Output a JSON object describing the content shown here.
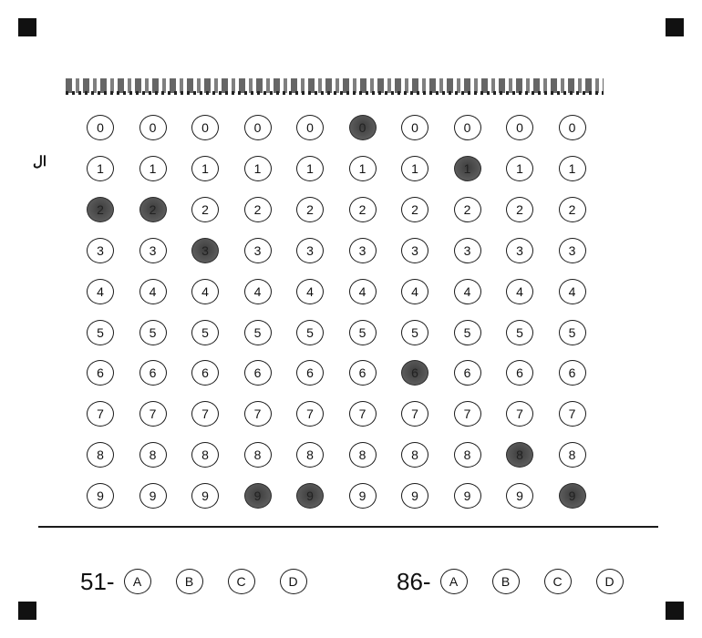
{
  "answer_sheet": {
    "stray_mark": "ال",
    "id_grid": {
      "digits": [
        "0",
        "1",
        "2",
        "3",
        "4",
        "5",
        "6",
        "7",
        "8",
        "9"
      ],
      "marked_digit_per_column": [
        2,
        2,
        3,
        9,
        9,
        0,
        6,
        1,
        8,
        9
      ]
    },
    "questions": [
      {
        "number": "51-",
        "options": [
          "A",
          "B",
          "C",
          "D"
        ]
      },
      {
        "number": "86-",
        "options": [
          "A",
          "B",
          "C",
          "D"
        ]
      }
    ]
  }
}
